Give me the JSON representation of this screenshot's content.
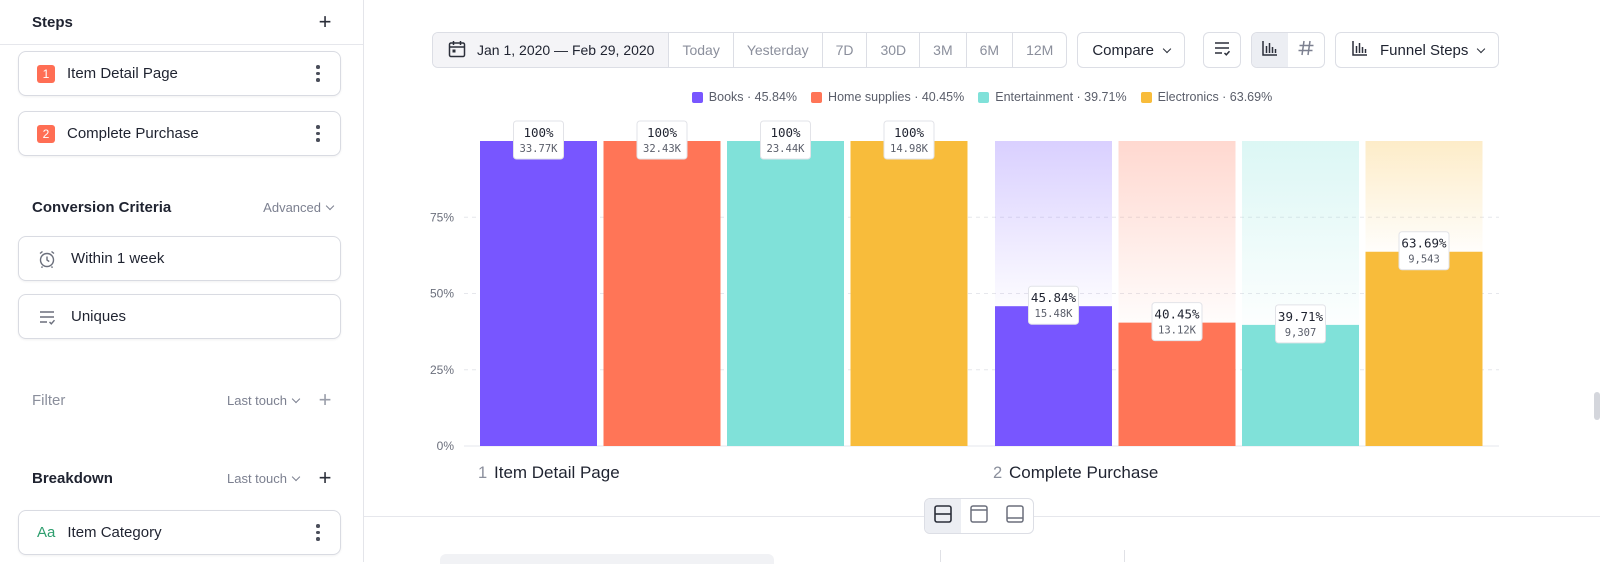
{
  "sidebar": {
    "steps_title": "Steps",
    "steps": [
      {
        "num": "1",
        "label": "Item Detail Page"
      },
      {
        "num": "2",
        "label": "Complete Purchase"
      }
    ],
    "conversion": {
      "title": "Conversion Criteria",
      "option": "Advanced",
      "items": [
        {
          "label": "Within 1 week",
          "icon": "alarm-clock-icon"
        },
        {
          "label": "Uniques",
          "icon": "list-check-icon"
        }
      ]
    },
    "filter": {
      "title": "Filter",
      "option": "Last touch"
    },
    "breakdown": {
      "title": "Breakdown",
      "option": "Last touch",
      "item": {
        "label": "Item Category",
        "icon_text": "Aa"
      }
    }
  },
  "toolbar": {
    "date_range": "Jan 1, 2020 — Feb 29, 2020",
    "ranges": [
      "Today",
      "Yesterday",
      "7D",
      "30D",
      "3M",
      "6M",
      "12M"
    ],
    "compare_label": "Compare",
    "view_label": "Funnel Steps"
  },
  "legend": [
    {
      "text": "Books · 45.84%",
      "color": "#7856ff"
    },
    {
      "text": "Home supplies · 40.45%",
      "color": "#ff7557"
    },
    {
      "text": "Entertainment · 39.71%",
      "color": "#80e1d9"
    },
    {
      "text": "Electronics · 63.69%",
      "color": "#f8bc3b"
    }
  ],
  "chart_data": {
    "type": "bar",
    "categories": [
      "Item Detail Page",
      "Complete Purchase"
    ],
    "category_numbers": [
      "1",
      "2"
    ],
    "ylim": [
      0,
      100
    ],
    "yticks": [
      "0%",
      "25%",
      "50%",
      "75%"
    ],
    "series": [
      {
        "name": "Books",
        "color": "#7856ff",
        "values": [
          100,
          45.84
        ],
        "labels": [
          "100%",
          "45.84%"
        ],
        "counts": [
          "33.77K",
          "15.48K"
        ]
      },
      {
        "name": "Home supplies",
        "color": "#ff7557",
        "values": [
          100,
          40.45
        ],
        "labels": [
          "100%",
          "40.45%"
        ],
        "counts": [
          "32.43K",
          "13.12K"
        ]
      },
      {
        "name": "Entertainment",
        "color": "#80e1d9",
        "values": [
          100,
          39.71
        ],
        "labels": [
          "100%",
          "39.71%"
        ],
        "counts": [
          "23.44K",
          "9,307"
        ]
      },
      {
        "name": "Electronics",
        "color": "#f8bc3b",
        "values": [
          100,
          63.69
        ],
        "labels": [
          "100%",
          "63.69%"
        ],
        "counts": [
          "14.98K",
          "9,543"
        ]
      }
    ],
    "grid": true
  }
}
